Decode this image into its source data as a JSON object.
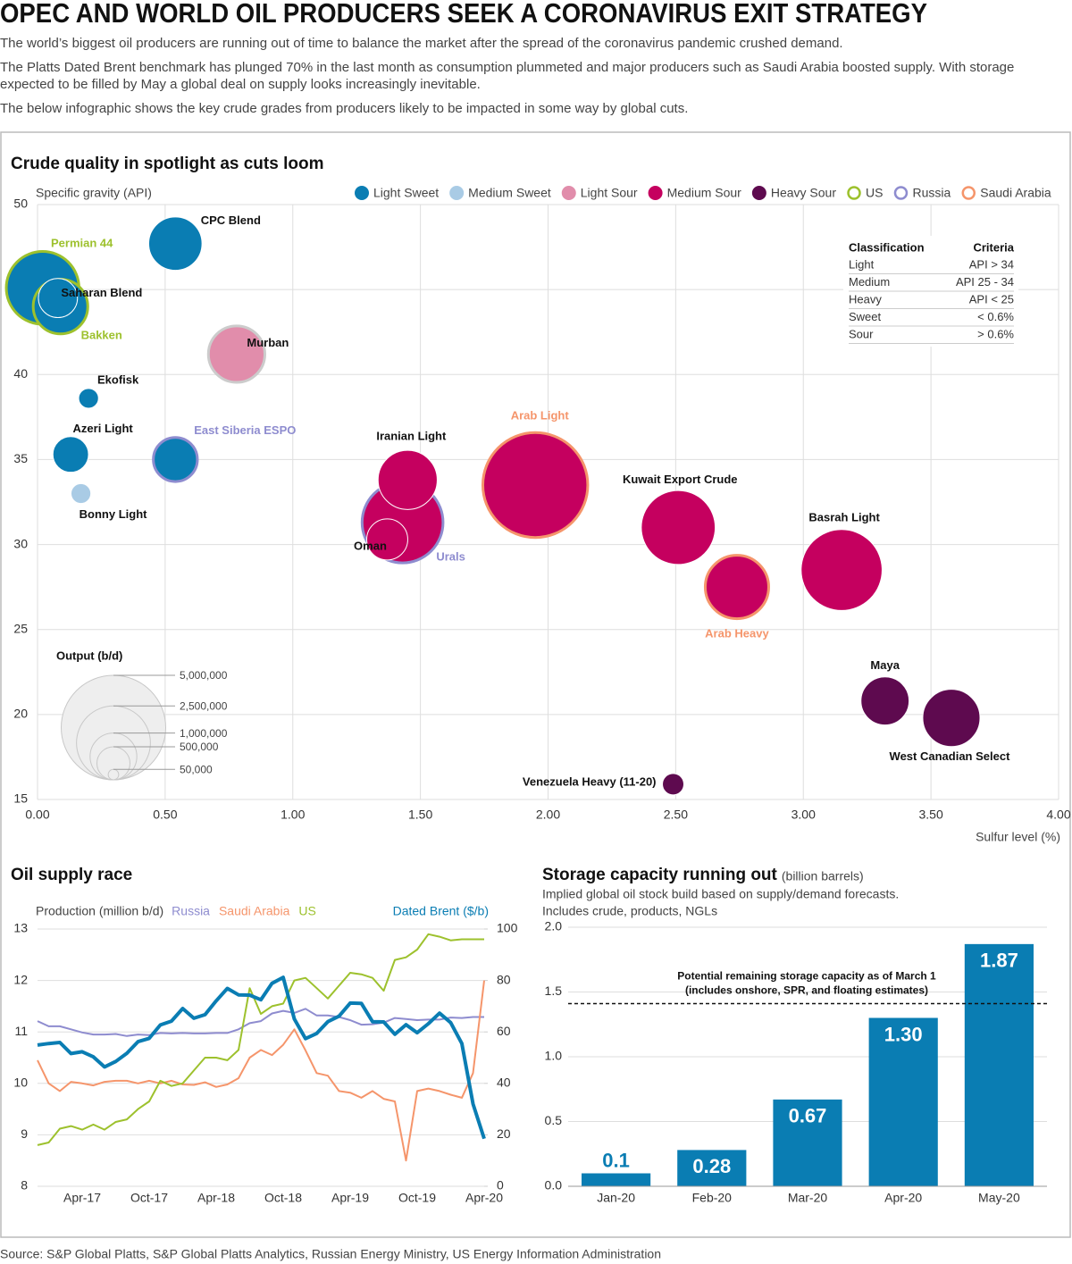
{
  "header": {
    "title": "OPEC AND WORLD OIL PRODUCERS SEEK A CORONAVIRUS EXIT STRATEGY",
    "paragraphs": [
      "The world’s biggest oil producers are running out of time to balance the market after the spread of the coronavirus pandemic crushed demand.",
      "The Platts Dated Brent benchmark has plunged 70% in the last month as consumption plummeted and major producers such as Saudi Arabia boosted supply. With storage expected to be filled by May a global deal on supply looks increasingly inevitable.",
      "The below infographic shows the key crude grades from producers likely to be impacted in some way by global cuts."
    ]
  },
  "chart_data": [
    {
      "type": "bubble",
      "title": "Crude quality in spotlight as cuts loom",
      "y_label": "Specific gravity (API)",
      "x_label": "Sulfur level (%)",
      "xlim": [
        0,
        4
      ],
      "xticks": [
        {
          "value": 0,
          "label": "0.00"
        },
        {
          "value": 0.5,
          "label": "0.50"
        },
        {
          "value": 1,
          "label": "1.00"
        },
        {
          "value": 1.5,
          "label": "1.50"
        },
        {
          "value": 2,
          "label": "2.00"
        },
        {
          "value": 2.5,
          "label": "2.50"
        },
        {
          "value": 3,
          "label": "3.00"
        },
        {
          "value": 3.5,
          "label": "3.50"
        },
        {
          "value": 4,
          "label": "4.00"
        }
      ],
      "ylim": [
        15,
        50
      ],
      "yticks": [
        15,
        20,
        25,
        30,
        35,
        40,
        45,
        50
      ],
      "grid": true,
      "classes": [
        {
          "name": "Light Sweet",
          "color": "#0a7db3"
        },
        {
          "name": "Medium Sweet",
          "color": "#a9cbe5"
        },
        {
          "name": "Light Sour",
          "color": "#e18dab"
        },
        {
          "name": "Medium Sour",
          "color": "#c5005f"
        },
        {
          "name": "Heavy Sour",
          "color": "#5e0a4f"
        }
      ],
      "producers": [
        {
          "name": "US",
          "color": "#9dc12d"
        },
        {
          "name": "Russia",
          "color": "#8e8ccf"
        },
        {
          "name": "Saudi Arabia",
          "color": "#f5956b"
        }
      ],
      "points": [
        {
          "name": "Permian 44",
          "x": 0.02,
          "y": 45.1,
          "size": 2600000,
          "class": "Light Sweet",
          "producer": "US"
        },
        {
          "name": "Bakken",
          "x": 0.09,
          "y": 44.0,
          "size": 1500000,
          "class": "Light Sweet",
          "producer": "US"
        },
        {
          "name": "Saharan Blend",
          "x": 0.08,
          "y": 44.5,
          "size": 700000,
          "class": "Light Sweet"
        },
        {
          "name": "CPC Blend",
          "x": 0.54,
          "y": 47.7,
          "size": 1300000,
          "class": "Light Sweet"
        },
        {
          "name": "Murban",
          "x": 0.78,
          "y": 41.2,
          "size": 1600000,
          "class": "Light Sour",
          "outline": "#cccccc"
        },
        {
          "name": "Ekofisk",
          "x": 0.2,
          "y": 38.6,
          "size": 180000,
          "class": "Light Sweet"
        },
        {
          "name": "Azeri Light",
          "x": 0.13,
          "y": 35.3,
          "size": 580000,
          "class": "Light Sweet"
        },
        {
          "name": "Bonny Light",
          "x": 0.17,
          "y": 33.0,
          "size": 180000,
          "class": "Medium Sweet"
        },
        {
          "name": "East Siberia ESPO",
          "x": 0.54,
          "y": 35.0,
          "size": 1000000,
          "class": "Light Sweet",
          "producer": "Russia"
        },
        {
          "name": "Urals",
          "x": 1.43,
          "y": 31.3,
          "size": 3200000,
          "class": "Medium Sour",
          "producer": "Russia"
        },
        {
          "name": "Iranian Light",
          "x": 1.45,
          "y": 33.8,
          "size": 1600000,
          "class": "Medium Sour"
        },
        {
          "name": "Oman",
          "x": 1.37,
          "y": 30.3,
          "size": 770000,
          "class": "Medium Sour"
        },
        {
          "name": "Arab Light",
          "x": 1.95,
          "y": 33.5,
          "size": 5300000,
          "class": "Medium Sour",
          "producer": "Saudi Arabia"
        },
        {
          "name": "Kuwait Export Crude",
          "x": 2.51,
          "y": 31.0,
          "size": 2500000,
          "class": "Medium Sour"
        },
        {
          "name": "Arab Heavy",
          "x": 2.74,
          "y": 27.5,
          "size": 2000000,
          "class": "Medium Sour",
          "producer": "Saudi Arabia"
        },
        {
          "name": "Basrah Light",
          "x": 3.15,
          "y": 28.5,
          "size": 3000000,
          "class": "Medium Sour"
        },
        {
          "name": "Maya",
          "x": 3.32,
          "y": 20.8,
          "size": 1060000,
          "class": "Heavy Sour"
        },
        {
          "name": "West Canadian Select",
          "x": 3.58,
          "y": 19.8,
          "size": 1500000,
          "class": "Heavy Sour"
        },
        {
          "name": "Venezuela Heavy (11-20)",
          "x": 2.49,
          "y": 15.9,
          "size": 210000,
          "class": "Heavy Sour"
        }
      ],
      "size_legend": {
        "title": "Output (b/d)",
        "sizes": [
          {
            "value": 5000000,
            "label": "5,000,000"
          },
          {
            "value": 2500000,
            "label": "2,500,000"
          },
          {
            "value": 1000000,
            "label": "1,000,000"
          },
          {
            "value": 500000,
            "label": "500,000"
          },
          {
            "value": 50000,
            "label": "50,000"
          }
        ]
      },
      "table": {
        "columns": [
          "Classification",
          "Criteria"
        ],
        "rows": [
          [
            "Light",
            "API > 34"
          ],
          [
            "Medium",
            "API 25 - 34"
          ],
          [
            "Heavy",
            "API < 25"
          ],
          [
            "Sweet",
            "< 0.6%"
          ],
          [
            "Sour",
            "> 0.6%"
          ]
        ]
      }
    },
    {
      "type": "line",
      "title": "Oil supply race",
      "y_label": "Production (million b/d)",
      "categories": [
        null,
        null,
        null,
        null,
        "Apr-17",
        null,
        null,
        null,
        null,
        null,
        "Oct-17",
        null,
        null,
        null,
        null,
        null,
        "Apr-18",
        null,
        null,
        null,
        null,
        null,
        "Oct-18",
        null,
        null,
        null,
        null,
        null,
        "Apr-19",
        null,
        null,
        null,
        null,
        null,
        "Oct-19",
        null,
        null,
        null,
        null,
        null,
        "Apr-20"
      ],
      "ylim": [
        8,
        13
      ],
      "yticks": [
        8,
        9,
        10,
        11,
        12,
        13
      ],
      "y2lim": [
        0,
        100
      ],
      "y2ticks": [
        0,
        20,
        40,
        60,
        80,
        100
      ],
      "grid": true,
      "series": [
        {
          "name": "Russia",
          "color": "#8e8ccf",
          "values": [
            11.21,
            11.11,
            11.11,
            11.05,
            10.99,
            10.95,
            10.95,
            10.96,
            10.92,
            10.95,
            10.94,
            10.98,
            10.97,
            10.98,
            10.97,
            10.97,
            10.98,
            10.98,
            11.05,
            11.17,
            11.21,
            11.36,
            11.41,
            11.37,
            11.45,
            11.32,
            11.32,
            11.29,
            11.23,
            11.14,
            11.15,
            11.18,
            11.27,
            11.25,
            11.23,
            11.24,
            11.24,
            11.28,
            11.27,
            11.29,
            11.29
          ]
        },
        {
          "name": "Saudi Arabia",
          "color": "#f5956b",
          "values": [
            10.45,
            10.0,
            9.85,
            10.03,
            10.0,
            9.96,
            10.03,
            10.05,
            10.05,
            10.0,
            10.05,
            10.0,
            10.05,
            9.98,
            9.97,
            10.02,
            9.93,
            9.98,
            10.1,
            10.5,
            10.65,
            10.55,
            10.75,
            11.05,
            10.64,
            10.2,
            10.15,
            9.85,
            9.82,
            9.72,
            9.85,
            9.7,
            9.65,
            8.5,
            9.85,
            9.9,
            9.85,
            9.78,
            9.72,
            10.2,
            12.0
          ]
        },
        {
          "name": "US",
          "color": "#9dc12d",
          "values": [
            8.8,
            8.85,
            9.12,
            9.17,
            9.1,
            9.2,
            9.1,
            9.25,
            9.3,
            9.5,
            9.65,
            10.05,
            9.95,
            10.0,
            10.25,
            10.5,
            10.5,
            10.45,
            10.65,
            11.85,
            11.35,
            11.5,
            11.55,
            12.0,
            12.05,
            11.85,
            11.65,
            11.9,
            12.15,
            12.12,
            12.05,
            11.8,
            12.4,
            12.45,
            12.6,
            12.9,
            12.85,
            12.78,
            12.8,
            12.8,
            12.8
          ]
        },
        {
          "name": "Dated Brent ($/b)",
          "color": "#0a7db3",
          "axis": "y2",
          "values": [
            54.9,
            55.5,
            55.9,
            51.6,
            52.3,
            50.3,
            46.4,
            48.5,
            51.7,
            56.2,
            57.5,
            62.7,
            64.2,
            69.1,
            65.3,
            66.7,
            72.1,
            76.9,
            74.4,
            74.3,
            72.5,
            78.9,
            81.2,
            65.0,
            57.4,
            59.4,
            64.0,
            66.1,
            71.2,
            71.1,
            64.0,
            63.9,
            59.1,
            62.8,
            59.7,
            63.2,
            67.3,
            63.6,
            55.5,
            32.0,
            18.5
          ]
        }
      ]
    },
    {
      "type": "bar",
      "title": "Storage capacity running out",
      "title_suffix": "(billion barrels)",
      "subtitle": [
        "Implied global oil stock build based on supply/demand forecasts.",
        "Includes crude, products, NGLs"
      ],
      "categories": [
        "Jan-20",
        "Feb-20",
        "Mar-20",
        "Apr-20",
        "May-20"
      ],
      "values": [
        0.1,
        0.28,
        0.67,
        1.3,
        1.87
      ],
      "value_labels": [
        "0.1",
        "0.28",
        "0.67",
        "1.30",
        "1.87"
      ],
      "color": "#0a7db3",
      "ylim": [
        0,
        2
      ],
      "yticks": [
        {
          "value": 0,
          "label": "0.0"
        },
        0.5,
        {
          "value": 1,
          "label": "1.0"
        },
        1.5,
        {
          "value": 2,
          "label": "2.0"
        }
      ],
      "grid": true,
      "reference_line": {
        "value": 1.41,
        "label_lines": [
          "Potential remaining storage capacity as of March 1",
          "(includes onshore, SPR, and floating estimates)"
        ]
      }
    }
  ],
  "source": "Source: S&P Global Platts, S&P Global Platts Analytics, Russian Energy Ministry, US Energy Information Administration"
}
